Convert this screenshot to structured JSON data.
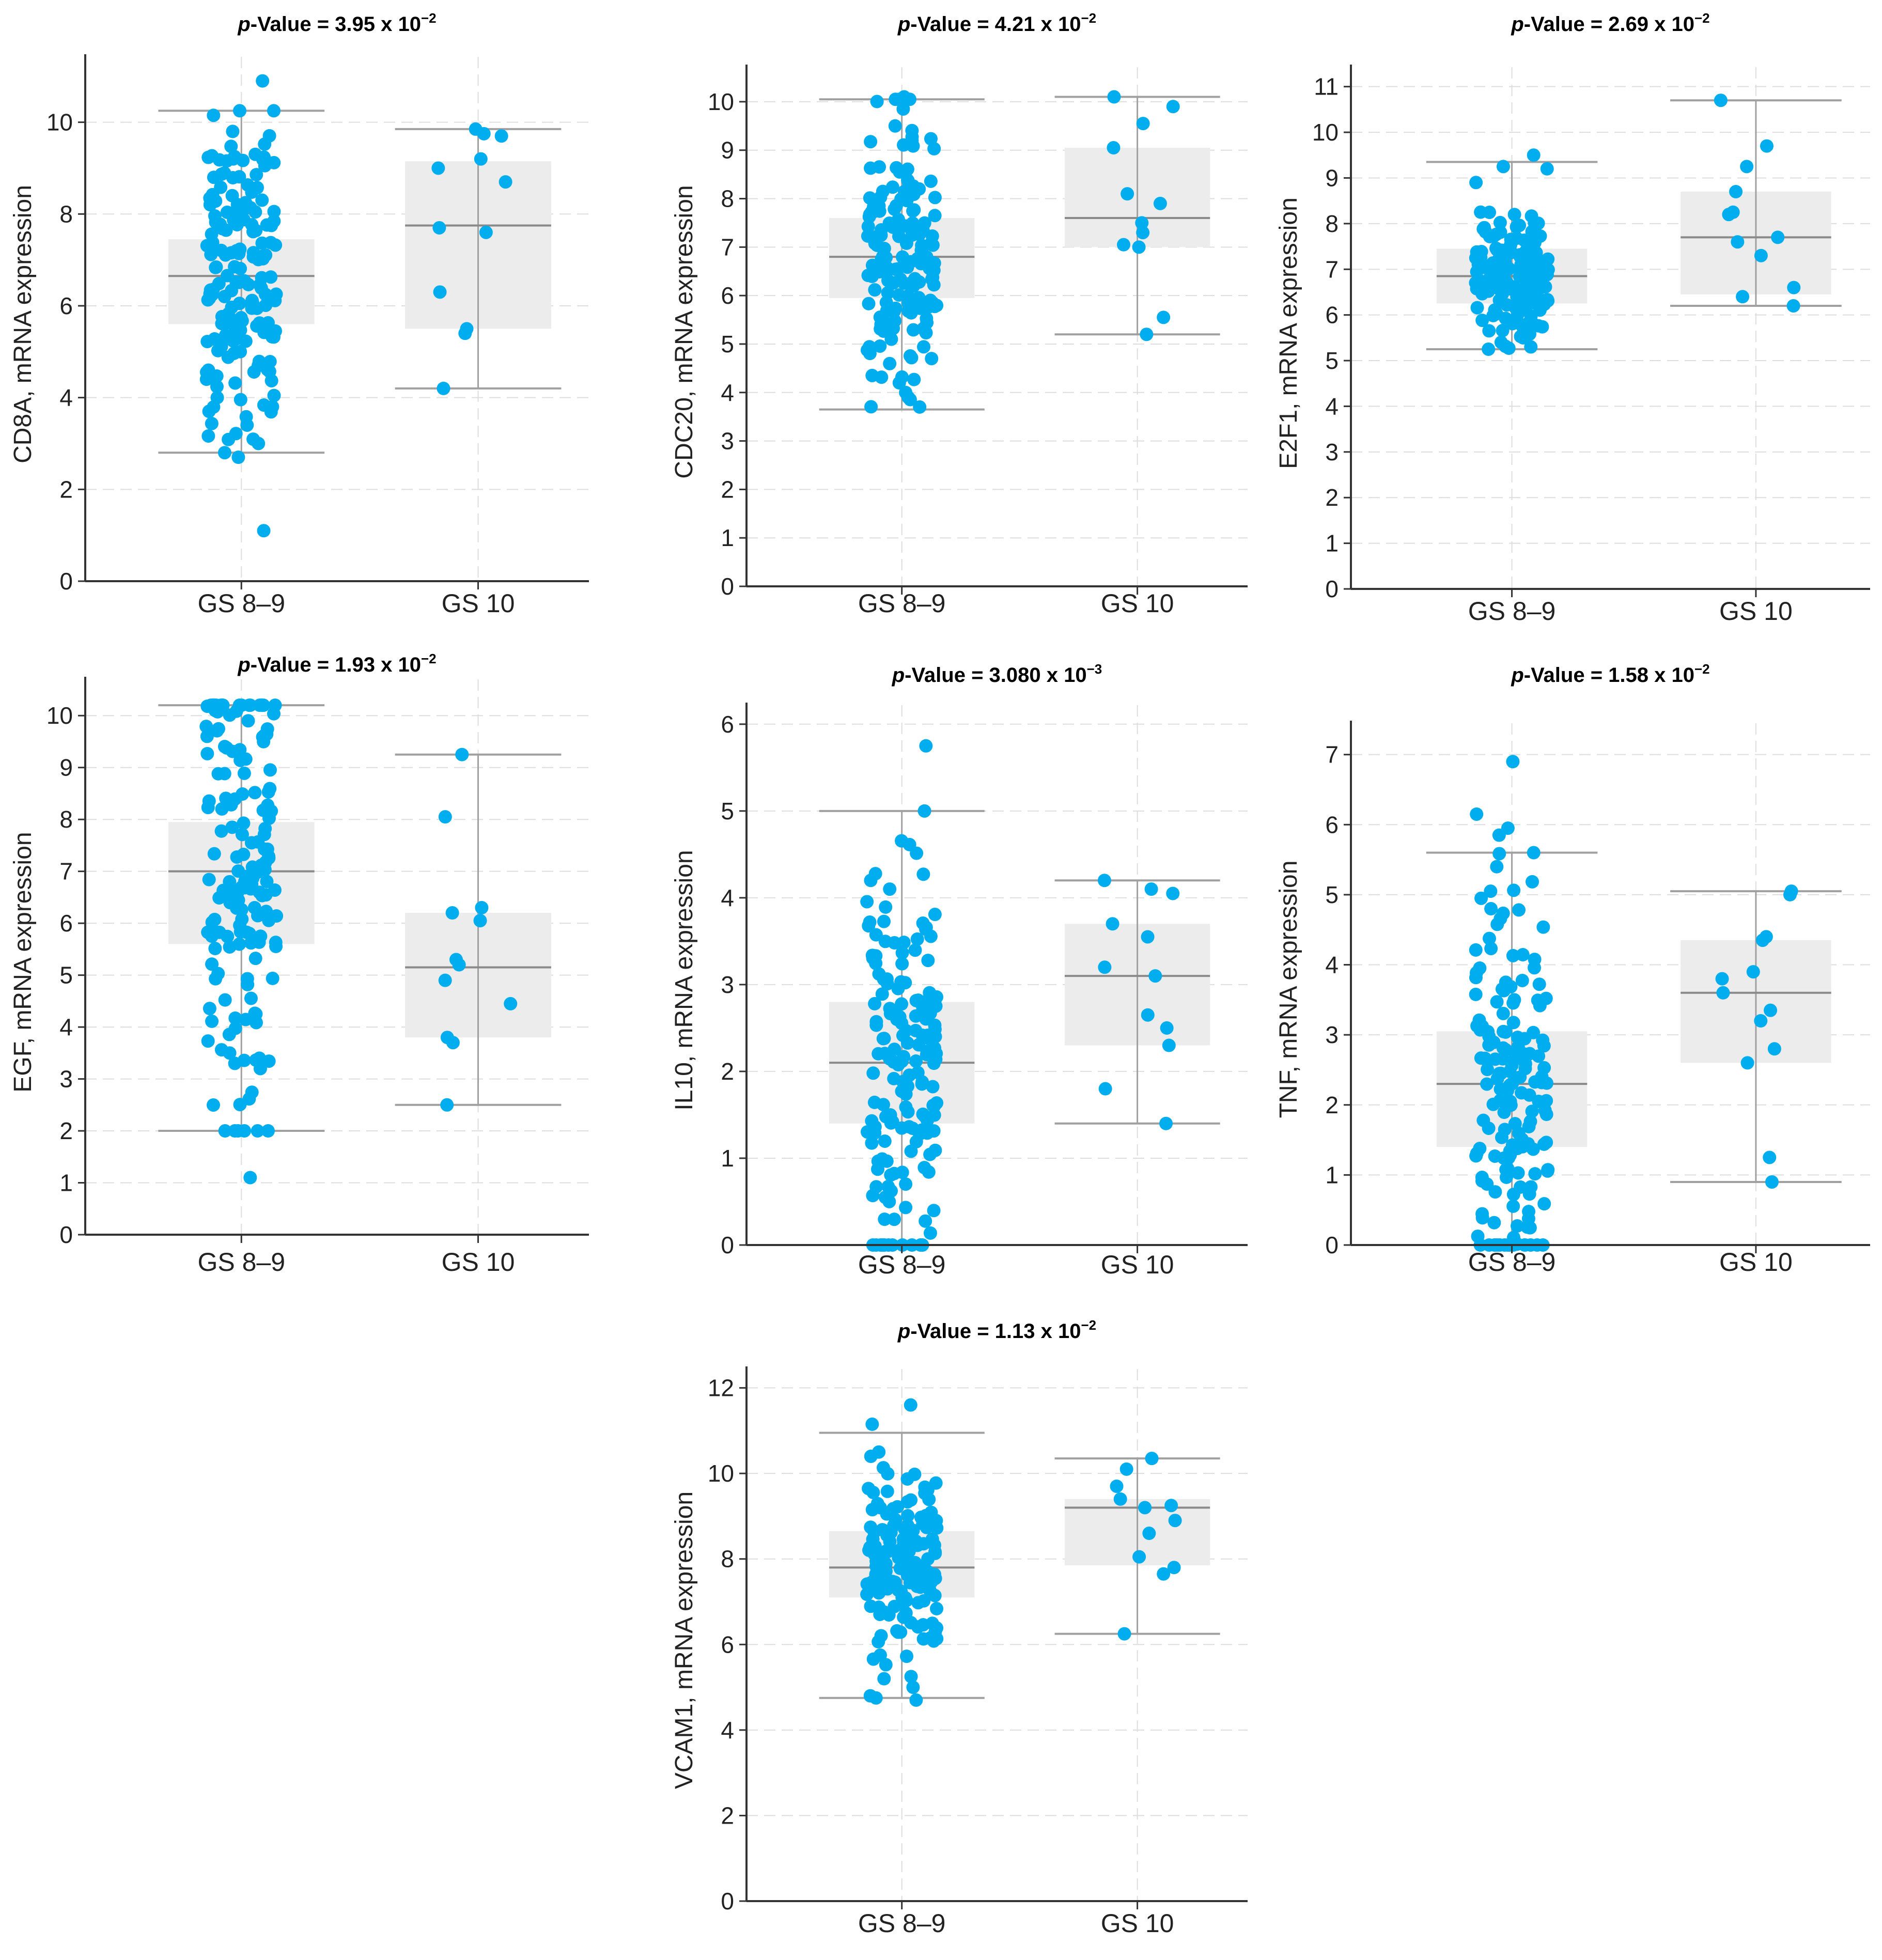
{
  "figure_title": "Box plots of mRNA expression by Gleason score group",
  "chart_data": [
    {
      "type": "box",
      "gene": "CD8A",
      "p_prefix": "p",
      "p_rest": "-Value = 3.95 x 10",
      "p_exp": "−2",
      "ylabel": "CD8A, mRNA expression",
      "ylim": [
        0,
        11.2
      ],
      "yticks": [
        0,
        2,
        4,
        6,
        8,
        10
      ],
      "categories": [
        "GS 8–9",
        "GS 10"
      ],
      "series": [
        {
          "name": "GS 8–9",
          "min": 2.8,
          "q1": 5.6,
          "median": 6.65,
          "q3": 7.45,
          "max": 10.25,
          "n": 160,
          "spread": 1.4,
          "points": [
            10.9,
            1.1,
            2.7,
            3.0,
            3.4,
            3.7,
            3.8,
            4.0,
            4.4,
            9.8,
            9.2,
            8.8,
            8.4
          ]
        },
        {
          "name": "GS 10",
          "min": 4.2,
          "q1": 5.5,
          "median": 7.75,
          "q3": 9.15,
          "max": 9.85,
          "n": 0,
          "spread": 1.0,
          "points": [
            9.85,
            9.75,
            9.7,
            9.2,
            9.0,
            8.7,
            7.7,
            7.6,
            6.3,
            5.5,
            5.4,
            4.2
          ]
        }
      ]
    },
    {
      "type": "box",
      "gene": "CDC20",
      "p_prefix": "p",
      "p_rest": "-Value = 4.21 x 10",
      "p_exp": "−2",
      "ylabel": "CDC20, mRNA expression",
      "ylim": [
        0,
        10.5
      ],
      "yticks": [
        0,
        1,
        2,
        3,
        4,
        5,
        6,
        7,
        8,
        9,
        10
      ],
      "categories": [
        "GS 8–9",
        "GS 10"
      ],
      "series": [
        {
          "name": "GS 8–9",
          "min": 3.65,
          "q1": 5.95,
          "median": 6.8,
          "q3": 7.6,
          "max": 10.05,
          "n": 160,
          "spread": 1.1,
          "points": [
            10.1,
            9.85,
            9.5,
            9.2,
            3.7,
            3.9,
            4.0,
            4.2,
            4.35,
            4.7,
            5.1
          ]
        },
        {
          "name": "GS 10",
          "min": 5.2,
          "q1": 7.0,
          "median": 7.6,
          "q3": 9.05,
          "max": 10.1,
          "n": 0,
          "spread": 1.0,
          "points": [
            10.1,
            9.9,
            9.55,
            9.05,
            8.1,
            7.9,
            7.5,
            7.3,
            7.05,
            7.0,
            5.55,
            5.2
          ]
        }
      ]
    },
    {
      "type": "box",
      "gene": "E2F1",
      "p_prefix": "p",
      "p_rest": "-Value = 2.69 x 10",
      "p_exp": "−2",
      "ylabel": "E2F1, mRNA expression",
      "ylim": [
        0,
        11.2
      ],
      "yticks": [
        0,
        1,
        2,
        3,
        4,
        5,
        6,
        7,
        8,
        9,
        10,
        11
      ],
      "categories": [
        "GS 8–9",
        "GS 10"
      ],
      "series": [
        {
          "name": "GS 8–9",
          "min": 5.25,
          "q1": 6.25,
          "median": 6.85,
          "q3": 7.45,
          "max": 9.35,
          "n": 160,
          "spread": 0.75,
          "points": [
            9.5,
            9.25,
            9.2,
            8.9,
            5.3,
            5.4,
            5.5
          ]
        },
        {
          "name": "GS 10",
          "min": 6.2,
          "q1": 6.45,
          "median": 7.7,
          "q3": 8.7,
          "max": 10.7,
          "n": 0,
          "spread": 1.0,
          "points": [
            10.7,
            9.7,
            9.25,
            8.7,
            8.25,
            8.2,
            7.7,
            7.6,
            7.3,
            6.6,
            6.4,
            6.2
          ]
        }
      ]
    },
    {
      "type": "box",
      "gene": "EGF",
      "p_prefix": "p",
      "p_rest": "-Value = 1.93 x 10",
      "p_exp": "−2",
      "ylabel": "EGF, mRNA expression",
      "ylim": [
        0,
        10.5
      ],
      "yticks": [
        0,
        1,
        2,
        3,
        4,
        5,
        6,
        7,
        8,
        9,
        10
      ],
      "categories": [
        "GS 8–9",
        "GS 10"
      ],
      "series": [
        {
          "name": "GS 8–9",
          "min": 2.0,
          "q1": 5.6,
          "median": 7.0,
          "q3": 7.95,
          "max": 10.2,
          "n": 160,
          "spread": 1.5,
          "points": [
            10.2,
            10.1,
            9.9,
            9.6,
            1.1,
            3.2,
            3.3,
            3.4,
            3.5
          ]
        },
        {
          "name": "GS 10",
          "min": 2.5,
          "q1": 3.8,
          "median": 5.15,
          "q3": 6.2,
          "max": 9.25,
          "n": 0,
          "spread": 1.0,
          "points": [
            9.25,
            8.05,
            6.3,
            6.2,
            6.05,
            5.3,
            5.2,
            4.9,
            4.45,
            3.8,
            3.7,
            2.5
          ]
        }
      ]
    },
    {
      "type": "box",
      "gene": "IL10",
      "p_prefix": "p",
      "p_rest": "-Value = 3.080 x 10",
      "p_exp": "−3",
      "ylabel": "IL10, mRNA expression",
      "ylim": [
        0,
        6.1
      ],
      "yticks": [
        0,
        1,
        2,
        3,
        4,
        5,
        6
      ],
      "categories": [
        "GS 8–9",
        "GS 10"
      ],
      "series": [
        {
          "name": "GS 8–9",
          "min": 0.0,
          "q1": 1.4,
          "median": 2.1,
          "q3": 2.8,
          "max": 5.0,
          "n": 160,
          "spread": 1.15,
          "points": [
            5.75,
            4.2,
            4.1,
            0,
            0,
            0,
            0,
            0,
            0,
            0,
            0.5,
            0.55
          ]
        },
        {
          "name": "GS 10",
          "min": 1.4,
          "q1": 2.3,
          "median": 3.1,
          "q3": 3.7,
          "max": 4.2,
          "n": 0,
          "spread": 1.0,
          "points": [
            4.2,
            4.1,
            4.05,
            3.7,
            3.55,
            3.2,
            3.1,
            2.65,
            2.5,
            2.3,
            1.8,
            1.4
          ]
        }
      ]
    },
    {
      "type": "box",
      "gene": "TNF",
      "p_prefix": "p",
      "p_rest": "-Value = 1.58 x 10",
      "p_exp": "−2",
      "ylabel": "TNF, mRNA expression",
      "ylim": [
        0,
        7.3
      ],
      "yticks": [
        0,
        1,
        2,
        3,
        4,
        5,
        6,
        7
      ],
      "categories": [
        "GS 8–9",
        "GS 10"
      ],
      "series": [
        {
          "name": "GS 8–9",
          "min": 0.0,
          "q1": 1.4,
          "median": 2.3,
          "q3": 3.05,
          "max": 5.6,
          "n": 160,
          "spread": 1.4,
          "points": [
            6.9,
            6.15,
            5.95,
            5.85,
            5.4,
            5.05,
            4.8,
            0,
            0,
            0,
            0,
            0
          ]
        },
        {
          "name": "GS 10",
          "min": 0.9,
          "q1": 2.6,
          "median": 3.6,
          "q3": 4.35,
          "max": 5.05,
          "n": 0,
          "spread": 1.0,
          "points": [
            5.05,
            5.0,
            4.4,
            4.35,
            3.9,
            3.8,
            3.6,
            3.35,
            3.2,
            2.8,
            2.6,
            1.25,
            0.9
          ]
        }
      ]
    },
    {
      "type": "box",
      "gene": "VCAM1",
      "p_prefix": "p",
      "p_rest": "-Value = 1.13 x 10",
      "p_exp": "−2",
      "ylabel": "VCAM1, mRNA expression",
      "ylim": [
        0,
        12.2
      ],
      "yticks": [
        0,
        2,
        4,
        6,
        8,
        10,
        12
      ],
      "categories": [
        "GS 8–9",
        "GS 10"
      ],
      "series": [
        {
          "name": "GS 8–9",
          "min": 4.75,
          "q1": 7.1,
          "median": 7.8,
          "q3": 8.65,
          "max": 10.95,
          "n": 160,
          "spread": 1.1,
          "points": [
            11.6,
            11.15,
            10.5,
            10.4,
            4.7,
            4.75,
            4.8,
            5.0,
            5.2
          ]
        },
        {
          "name": "GS 10",
          "min": 6.25,
          "q1": 7.85,
          "median": 9.2,
          "q3": 9.4,
          "max": 10.35,
          "n": 0,
          "spread": 1.0,
          "points": [
            10.35,
            10.1,
            9.7,
            9.4,
            9.25,
            9.2,
            8.9,
            8.6,
            8.05,
            7.8,
            7.65,
            6.25
          ]
        }
      ]
    }
  ],
  "colors": {
    "point": "#00AEEF",
    "box_fill": "#ECECEC",
    "whisker": "#A0A0A0",
    "median": "#8A8A8A",
    "axis": "#333333",
    "grid": "#DDDDDD"
  }
}
